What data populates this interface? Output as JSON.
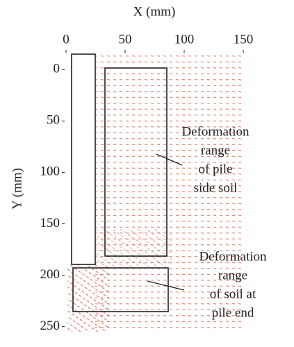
{
  "chart_data": {
    "type": "quiver",
    "x_label": "X (mm)",
    "y_label": "Y (mm)",
    "xlim": [
      0,
      150
    ],
    "xticks": [
      0,
      50,
      100,
      150
    ],
    "x_axis_position": "top",
    "ylim": [
      -15,
      255
    ],
    "yticks": [
      0,
      50,
      100,
      150,
      200,
      250
    ],
    "y_inverted": true,
    "color": "#d9573b",
    "annotations": [
      {
        "lines": [
          "Deformation",
          "range",
          "of pile",
          "side soil"
        ]
      },
      {
        "lines": [
          "Deformation",
          "range",
          "of soil at",
          "pile end"
        ]
      }
    ]
  }
}
